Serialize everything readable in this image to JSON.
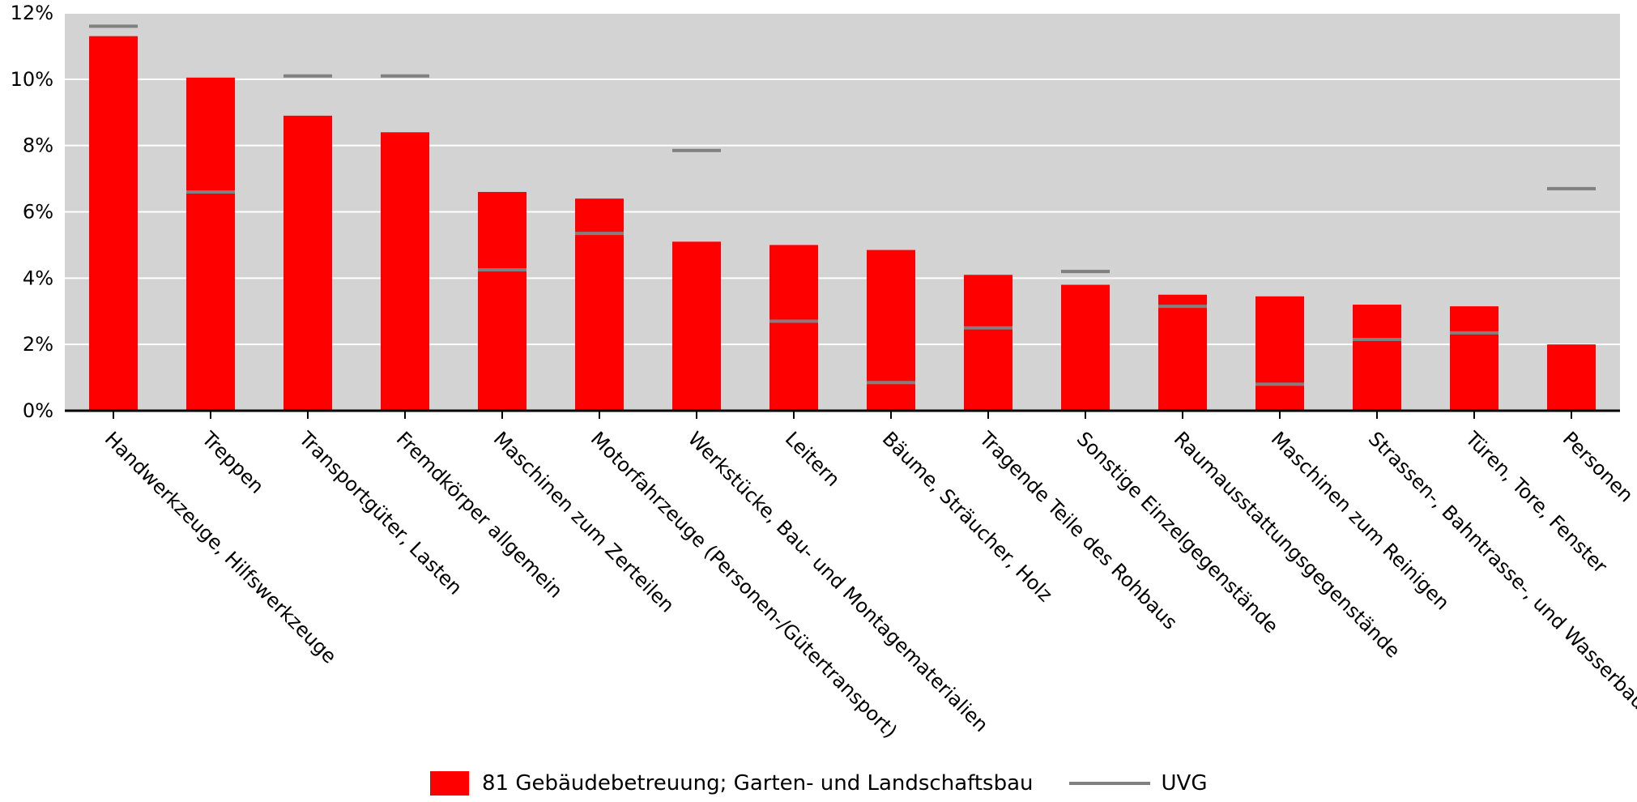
{
  "chart_data": {
    "type": "bar",
    "categories": [
      "Handwerkzeuge, Hilfswerkzeuge",
      "Treppen",
      "Transportgüter, Lasten",
      "Fremdkörper allgemein",
      "Maschinen zum Zerteilen",
      "Motorfahrzeuge (Personen-/Gütertransport)",
      "Werkstücke, Bau- und Montagematerialien",
      "Leitern",
      "Bäume, Sträucher, Holz",
      "Tragende Teile des Rohbaus",
      "Sonstige Einzelgegenstände",
      "Raumausstattungsgegenstände",
      "Maschinen zum Reinigen",
      "Strassen-, Bahntrasse-, und Wasserbau",
      "Türen, Tore, Fenster",
      "Personen"
    ],
    "series": [
      {
        "name": "81 Gebäudebetreuung; Garten- und Landschaftsbau",
        "type": "bar",
        "color": "#ff0000",
        "values": [
          11.3,
          10.05,
          8.9,
          8.4,
          6.6,
          6.4,
          5.1,
          5.0,
          4.85,
          4.1,
          3.8,
          3.5,
          3.45,
          3.2,
          3.15,
          2.0
        ]
      },
      {
        "name": "UVG",
        "type": "marker-line",
        "color": "#808080",
        "values": [
          11.6,
          6.6,
          10.1,
          10.1,
          4.25,
          5.35,
          7.85,
          2.7,
          0.85,
          2.5,
          4.2,
          3.15,
          0.8,
          2.15,
          2.35,
          6.7
        ]
      }
    ],
    "y_ticks": [
      "0%",
      "2%",
      "4%",
      "6%",
      "8%",
      "10%",
      "12%"
    ],
    "ylim": [
      0,
      12
    ],
    "grid": true,
    "plot_background": "#d3d3d3",
    "legend_position": "bottom"
  }
}
